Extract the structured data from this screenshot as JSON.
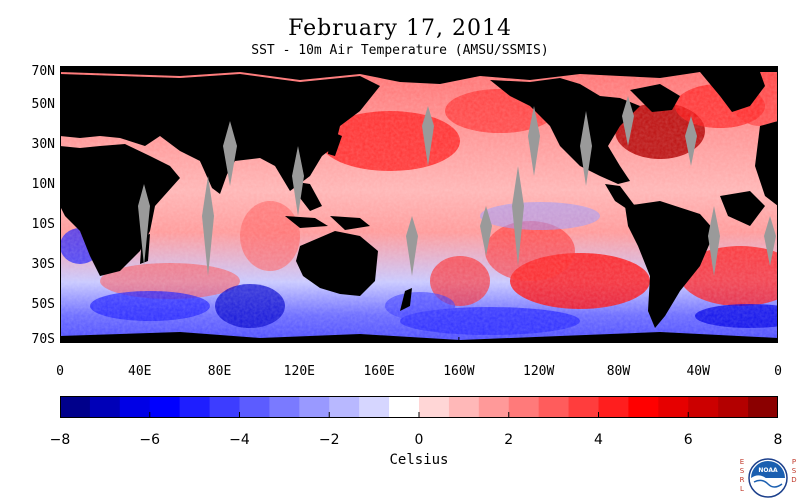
{
  "title": "February 17, 2014",
  "subtitle": "SST - 10m Air Temperature (AMSU/SSMIS)",
  "map": {
    "lat_labels": [
      "70N",
      "50N",
      "30N",
      "10N",
      "10S",
      "30S",
      "50S",
      "70S"
    ],
    "lon_labels": [
      "0",
      "40E",
      "80E",
      "120E",
      "160E",
      "160W",
      "120W",
      "80W",
      "40W",
      "0"
    ],
    "land_color": "#000000",
    "missing_color": "#9a9a9a"
  },
  "colorbar": {
    "unit": "Celsius",
    "tick_labels": [
      "−8",
      "−6",
      "−4",
      "−2",
      "0",
      "2",
      "4",
      "6",
      "8"
    ],
    "range": [
      -8,
      8
    ],
    "colors": [
      "#00008b",
      "#0000b8",
      "#0000e6",
      "#0000ff",
      "#1e1eff",
      "#3d3dff",
      "#5c5cff",
      "#7a7aff",
      "#9999ff",
      "#b8b8ff",
      "#d6d6ff",
      "#ffffff",
      "#ffd6d6",
      "#ffb8b8",
      "#ff9999",
      "#ff7a7a",
      "#ff5c5c",
      "#ff3d3d",
      "#ff1e1e",
      "#ff0000",
      "#e60000",
      "#cc0000",
      "#b30000",
      "#8b0000"
    ]
  },
  "logo": {
    "left_text": [
      "E",
      "S",
      "R",
      "L"
    ],
    "right_text": [
      "P",
      "S",
      "D"
    ],
    "center_text": "NOAA"
  }
}
